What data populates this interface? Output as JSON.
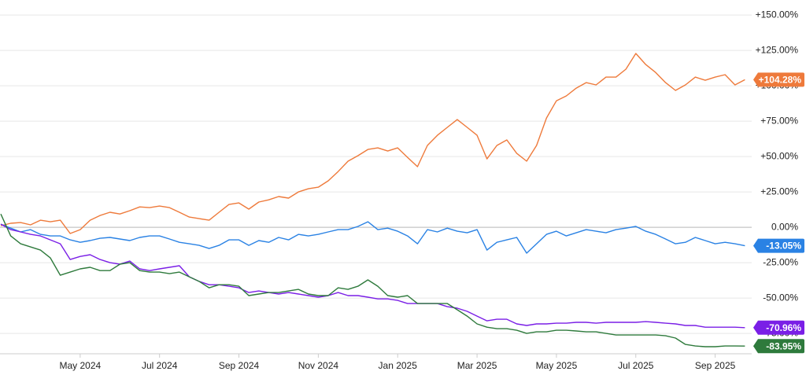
{
  "chart_data": {
    "type": "line",
    "x": [
      3,
      3.25,
      3.5,
      3.75,
      4,
      4.25,
      4.5,
      4.75,
      5,
      5.25,
      5.5,
      5.75,
      6,
      6.25,
      6.5,
      6.75,
      7,
      7.25,
      7.5,
      7.75,
      8,
      8.25,
      8.5,
      8.75,
      9,
      9.25,
      9.5,
      9.75,
      10,
      10.25,
      10.5,
      10.75,
      11,
      11.25,
      11.5,
      11.75,
      12,
      12.25,
      12.5,
      12.75,
      13,
      13.25,
      13.5,
      13.75,
      14,
      14.25,
      14.5,
      14.75,
      15,
      15.25,
      15.5,
      15.75,
      16,
      16.25,
      16.5,
      16.75,
      17,
      17.25,
      17.5,
      17.75,
      18,
      18.25,
      18.5,
      18.75,
      19,
      19.25,
      19.5,
      19.75,
      20,
      20.25,
      20.5,
      20.75,
      21,
      21.25,
      21.5,
      21.75
    ],
    "xlim": [
      2.98,
      21.92
    ],
    "xticks": [
      {
        "value": 5,
        "label": "May 2024"
      },
      {
        "value": 7,
        "label": "Jul 2024"
      },
      {
        "value": 9,
        "label": "Sep 2024"
      },
      {
        "value": 11,
        "label": "Nov 2024"
      },
      {
        "value": 13,
        "label": "Jan 2025"
      },
      {
        "value": 15,
        "label": "Mar 2025"
      },
      {
        "value": 17,
        "label": "May 2025"
      },
      {
        "value": 19,
        "label": "Jul 2025"
      },
      {
        "value": 21,
        "label": "Sep 2025"
      }
    ],
    "ylim": [
      -89.4,
      160.6
    ],
    "yticks": [
      {
        "value": 150,
        "label": "+150.00%"
      },
      {
        "value": 125,
        "label": "+125.00%"
      },
      {
        "value": 100,
        "label": "+100.00%"
      },
      {
        "value": 75,
        "label": "+75.00%"
      },
      {
        "value": 50,
        "label": "+50.00%"
      },
      {
        "value": 25,
        "label": "+25.00%"
      },
      {
        "value": 0,
        "label": "0.00%"
      },
      {
        "value": -25,
        "label": "-25.00%"
      },
      {
        "value": -50,
        "label": "-50.00%"
      },
      {
        "value": -75,
        "label": "-75.00%"
      }
    ],
    "grid": true,
    "series": [
      {
        "color": "#ee7a3b",
        "end_label": "+104.28%",
        "values": [
          1.1,
          2.8,
          3.3,
          1.7,
          5,
          3.9,
          5,
          -4.4,
          -1.7,
          5,
          8.3,
          10.6,
          9.4,
          11.7,
          14.4,
          13.9,
          15,
          13.9,
          10.6,
          7.2,
          6.1,
          5,
          10.6,
          16.1,
          17.2,
          12.8,
          17.8,
          19.4,
          21.7,
          20.6,
          25,
          27.2,
          28.3,
          32.8,
          39.4,
          46.7,
          50.6,
          55,
          56.1,
          53.9,
          56.1,
          49.4,
          42.8,
          57.8,
          65,
          70.6,
          76.1,
          70.6,
          65,
          48.3,
          57.8,
          61.7,
          52.2,
          46.7,
          57.8,
          77.2,
          89.4,
          92.8,
          98.3,
          102.2,
          100.6,
          106.1,
          106.1,
          111.7,
          122.8,
          115,
          109.4,
          102.2,
          96.7,
          100.6,
          106.1,
          103.9,
          106.1,
          107.8,
          100.6,
          104.28
        ]
      },
      {
        "color": "#2a82e4",
        "end_label": "-13.05%",
        "values": [
          2.2,
          -0.6,
          -3.3,
          -1.7,
          -5,
          -6.1,
          -6.1,
          -8.9,
          -10.6,
          -9.4,
          -7.8,
          -7.2,
          -8.3,
          -9.4,
          -7.2,
          -6.1,
          -6.1,
          -8.3,
          -10.6,
          -11.7,
          -12.8,
          -15,
          -12.8,
          -8.9,
          -8.9,
          -12.8,
          -9.4,
          -10.6,
          -7.2,
          -8.9,
          -5,
          -6.1,
          -5,
          -3.3,
          -1.7,
          -1.7,
          0.6,
          3.9,
          -1.7,
          -0.6,
          -2.8,
          -6.1,
          -11.7,
          -1.7,
          -3.3,
          -0.6,
          -2.8,
          -3.9,
          -1.7,
          -16.1,
          -10.6,
          -8.9,
          -7.2,
          -18.3,
          -11.7,
          -5,
          -2.8,
          -6.1,
          -3.9,
          -1.7,
          -2.8,
          -3.9,
          -1.7,
          -0.6,
          0.6,
          -2.8,
          -5,
          -8.3,
          -11.7,
          -10.6,
          -7.2,
          -9.4,
          -11.7,
          -10.6,
          -11.7,
          -13.05
        ]
      },
      {
        "color": "#7a1fe6",
        "end_label": "-70.96%",
        "values": [
          2.2,
          -1.7,
          -3.3,
          -5,
          -6.1,
          -8.9,
          -11.7,
          -22.8,
          -20.6,
          -19.4,
          -22.8,
          -25,
          -26.1,
          -23.9,
          -29.4,
          -30.6,
          -29.4,
          -28.3,
          -27.2,
          -35,
          -38.3,
          -40.6,
          -40.6,
          -41.7,
          -42.8,
          -46.1,
          -45,
          -46.1,
          -47.2,
          -46.1,
          -47.2,
          -48.3,
          -49.4,
          -48.3,
          -46.1,
          -48.3,
          -48.3,
          -49.4,
          -50.6,
          -50.6,
          -51.7,
          -53.9,
          -53.9,
          -53.9,
          -53.9,
          -56.1,
          -57.2,
          -59.4,
          -62.8,
          -66.1,
          -65,
          -65,
          -68.3,
          -69.4,
          -68.3,
          -68.3,
          -67.8,
          -67.8,
          -67.2,
          -67.2,
          -67.8,
          -67.2,
          -67.2,
          -67.2,
          -67.2,
          -66.7,
          -67.2,
          -67.8,
          -68.3,
          -69.4,
          -69.4,
          -70.6,
          -70.6,
          -70.6,
          -70.6,
          -70.96
        ]
      },
      {
        "color": "#2e7a3c",
        "end_label": "-83.95%",
        "values": [
          9.4,
          -6.1,
          -11.7,
          -13.9,
          -16.1,
          -21.7,
          -33.9,
          -31.7,
          -29.4,
          -28.3,
          -30.6,
          -30.6,
          -26.1,
          -25,
          -30.6,
          -31.7,
          -31.7,
          -32.8,
          -31.7,
          -35,
          -38.3,
          -42.8,
          -40.6,
          -40.6,
          -41.7,
          -48.3,
          -47.2,
          -46.1,
          -46.1,
          -45,
          -43.9,
          -47.2,
          -48.3,
          -48.3,
          -42.8,
          -43.9,
          -41.7,
          -37.2,
          -41.7,
          -48.3,
          -49.4,
          -48.3,
          -53.9,
          -53.9,
          -53.9,
          -53.9,
          -58.3,
          -62.8,
          -68.3,
          -70.6,
          -71.7,
          -71.7,
          -72.8,
          -75,
          -73.9,
          -73.9,
          -72.8,
          -72.8,
          -73.3,
          -73.9,
          -73.9,
          -75,
          -76.1,
          -76.1,
          -76.1,
          -76.1,
          -76.1,
          -76.7,
          -78.3,
          -82.8,
          -83.9,
          -84.4,
          -84.4,
          -83.9,
          -83.9,
          -83.95
        ]
      }
    ]
  }
}
